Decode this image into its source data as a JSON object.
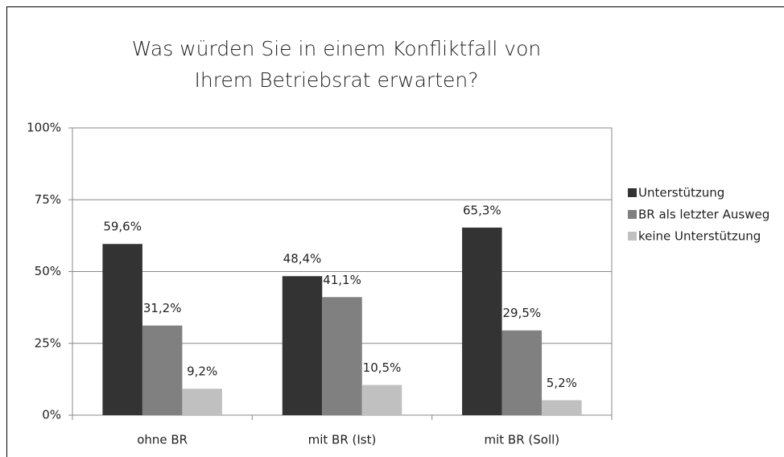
{
  "chart_data": {
    "type": "bar",
    "title": [
      "Was würden Sie in einem Konfliktfall von",
      "Ihrem Betriebsrat erwarten?"
    ],
    "categories": [
      "ohne BR",
      "mit BR (Ist)",
      "mit BR (Soll)"
    ],
    "series": [
      {
        "name": "Unterstützung",
        "color": "#333333",
        "values": [
          59.6,
          48.4,
          65.3
        ],
        "value_labels": [
          "59,6%",
          "48,4%",
          "65,3%"
        ]
      },
      {
        "name": "BR als letzter Ausweg",
        "color": "#808080",
        "values": [
          31.2,
          41.1,
          29.5
        ],
        "value_labels": [
          "31,2%",
          "41,1%",
          "29,5%"
        ]
      },
      {
        "name": "keine Unterstützung",
        "color": "#c0c0c0",
        "values": [
          9.2,
          10.5,
          5.2
        ],
        "value_labels": [
          "9,2%",
          "10,5%",
          "5,2%"
        ]
      }
    ],
    "ylim": [
      0,
      100
    ],
    "yticks": [
      {
        "value": 0,
        "label": "0%"
      },
      {
        "value": 25,
        "label": "25%"
      },
      {
        "value": 50,
        "label": "50%"
      },
      {
        "value": 75,
        "label": "75%"
      },
      {
        "value": 100,
        "label": "100%"
      }
    ],
    "grid": true,
    "legend": "right"
  }
}
